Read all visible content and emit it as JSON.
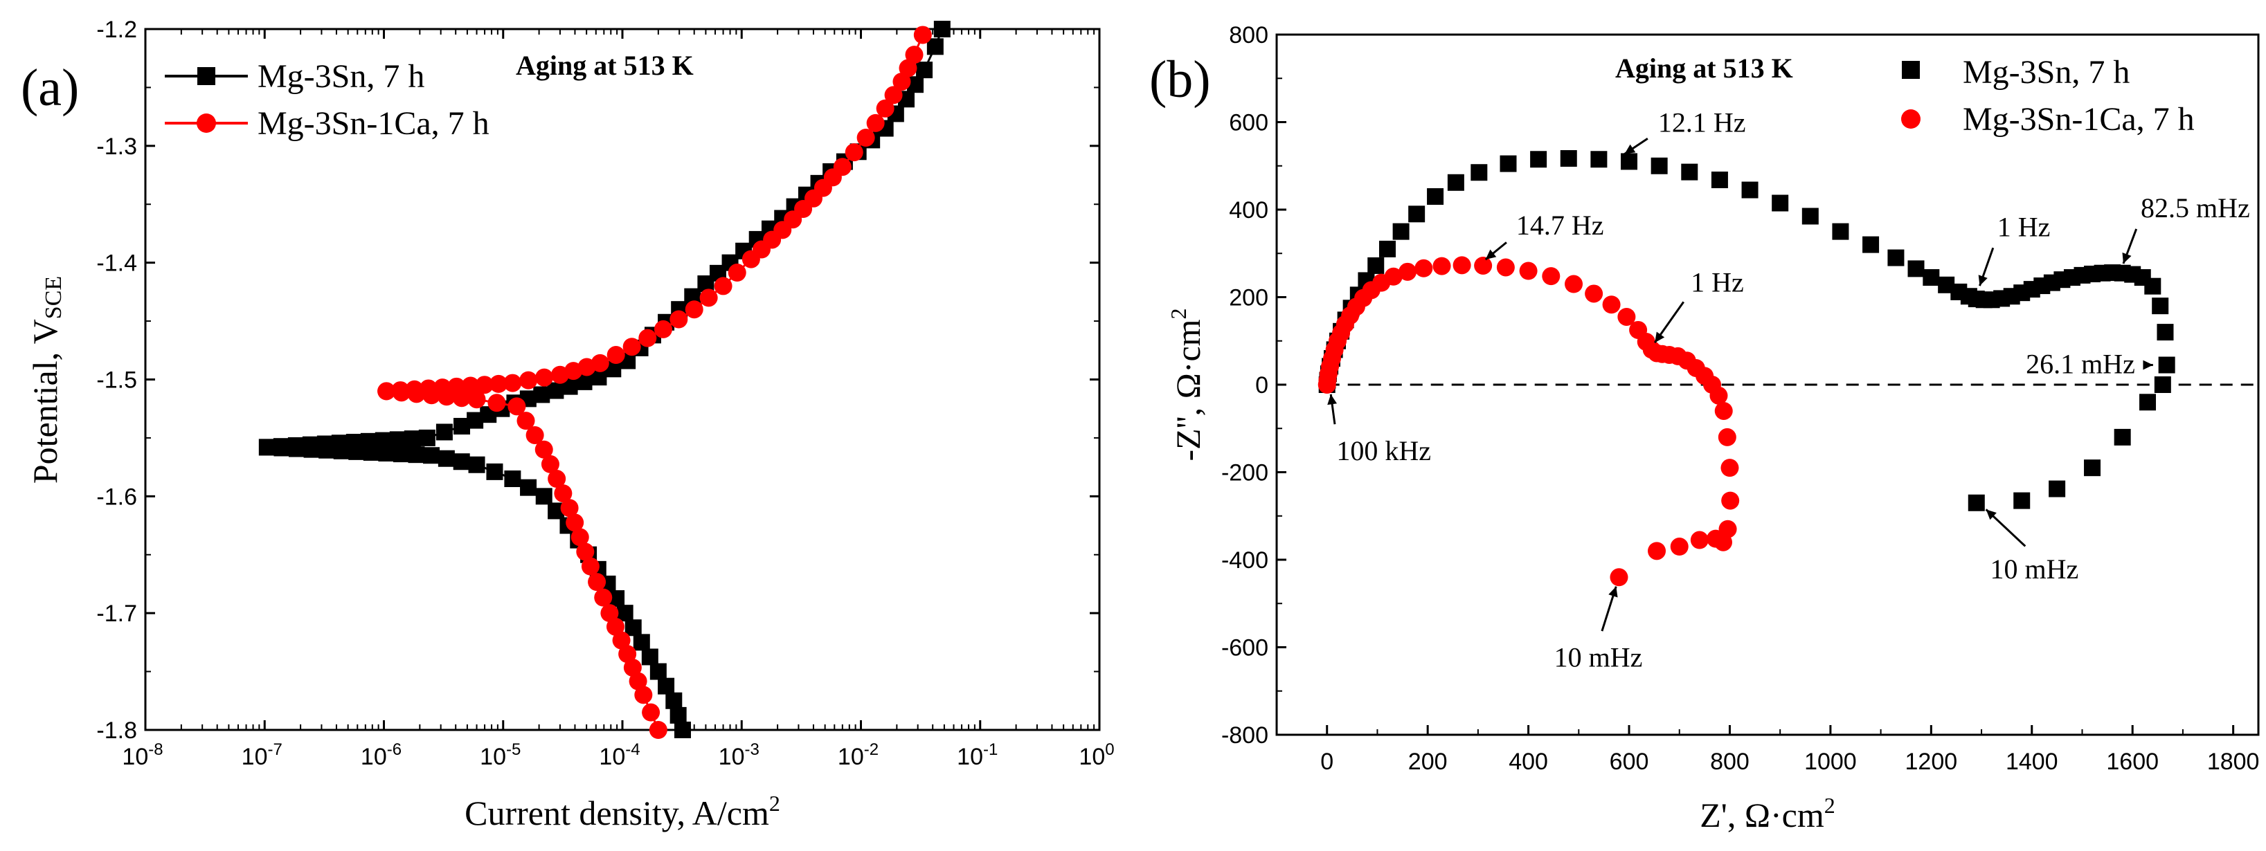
{
  "chart_data": [
    {
      "panel": "(a)",
      "type": "line",
      "annotation": "Aging at 513 K",
      "xlabel": "Current density, A/cm",
      "xlabel_sup": "2",
      "ylabel": "Potential, V",
      "ylabel_sub": "SCE",
      "xscale": "log",
      "xlim": [
        1e-08,
        1
      ],
      "ylim": [
        -1.8,
        -1.2
      ],
      "xticks": [
        {
          "base": "10",
          "exp": "-8"
        },
        {
          "base": "10",
          "exp": "-7"
        },
        {
          "base": "10",
          "exp": "-6"
        },
        {
          "base": "10",
          "exp": "-5"
        },
        {
          "base": "10",
          "exp": "-4"
        },
        {
          "base": "10",
          "exp": "-3"
        },
        {
          "base": "10",
          "exp": "-2"
        },
        {
          "base": "10",
          "exp": "-1"
        },
        {
          "base": "10",
          "exp": "0"
        }
      ],
      "yticks": [
        "-1.2",
        "-1.3",
        "-1.4",
        "-1.5",
        "-1.6",
        "-1.7",
        "-1.8"
      ],
      "legend_position": "top-left",
      "series": [
        {
          "name": "Mg-3Sn, 7 h",
          "color": "#000000",
          "marker": "square",
          "x": [
            1.05e-07,
            2.3e-06,
            4.5e-06,
            7.5e-06,
            1.25e-05,
            2.1e-05,
            3.6e-05,
            6.3e-05,
            0.00011,
            0.00018,
            0.0003,
            0.0005,
            0.0008,
            0.00135,
            0.0022,
            0.0035,
            0.0056,
            0.0095,
            0.016,
            0.024,
            0.034,
            0.042,
            0.048
          ],
          "y": [
            -1.558,
            -1.55,
            -1.54,
            -1.53,
            -1.52,
            -1.513,
            -1.506,
            -1.498,
            -1.484,
            -1.462,
            -1.44,
            -1.418,
            -1.4,
            -1.38,
            -1.362,
            -1.342,
            -1.322,
            -1.305,
            -1.285,
            -1.26,
            -1.235,
            -1.215,
            -1.2
          ],
          "x_cathodic": [
            1.05e-07,
            2.5e-06,
            6e-06,
            1.2e-05,
            2.2e-05,
            3.5e-05,
            5.2e-05,
            7.5e-05,
            0.000105,
            0.000145,
            0.0002,
            0.00027,
            0.00032
          ],
          "y_cathodic": [
            -1.558,
            -1.565,
            -1.573,
            -1.585,
            -1.6,
            -1.625,
            -1.65,
            -1.675,
            -1.7,
            -1.725,
            -1.75,
            -1.775,
            -1.8
          ]
        },
        {
          "name": "Mg-3Sn-1Ca, 7 h",
          "color": "#ff0000",
          "marker": "circle",
          "x": [
            1.05e-06,
            1.2e-05,
            3e-05,
            6.5e-05,
            0.00012,
            0.00022,
            0.0004,
            0.0007,
            0.0012,
            0.0022,
            0.004,
            0.007,
            0.011,
            0.016,
            0.022,
            0.028,
            0.033
          ],
          "y": [
            -1.51,
            -1.503,
            -1.496,
            -1.486,
            -1.472,
            -1.457,
            -1.44,
            -1.42,
            -1.397,
            -1.372,
            -1.345,
            -1.318,
            -1.293,
            -1.268,
            -1.245,
            -1.222,
            -1.205
          ],
          "x_cathodic": [
            1.05e-06,
            6e-06,
            1.3e-05,
            2.2e-05,
            3.6e-05,
            5.4e-05,
            7.8e-05,
            0.00011,
            0.00015,
            0.0002
          ],
          "y_cathodic": [
            -1.51,
            -1.517,
            -1.523,
            -1.56,
            -1.61,
            -1.66,
            -1.7,
            -1.735,
            -1.77,
            -1.8
          ]
        }
      ]
    },
    {
      "panel": "(b)",
      "type": "scatter",
      "annotation": "Aging at 513 K",
      "xlabel": "Z', Ω·cm",
      "xlabel_sup": "2",
      "ylabel": "-Z'', Ω·cm",
      "ylabel_sup": "2",
      "xlim": [
        -100,
        1850
      ],
      "ylim": [
        -800,
        800
      ],
      "xticks": [
        "0",
        "200",
        "400",
        "600",
        "800",
        "1000",
        "1200",
        "1400",
        "1600",
        "1800"
      ],
      "yticks": [
        "800",
        "600",
        "400",
        "200",
        "0",
        "-200",
        "-400",
        "-600",
        "-800"
      ],
      "reference_line_y": 0,
      "legend_position": "top-right",
      "series": [
        {
          "name": "Mg-3Sn, 7 h",
          "color": "#000000",
          "marker": "square",
          "x": [
            0,
            1,
            3,
            6,
            10,
            15,
            21,
            28,
            37,
            48,
            62,
            78,
            97,
            120,
            147,
            178,
            215,
            256,
            302,
            360,
            420,
            480,
            540,
            600,
            660,
            720,
            780,
            840,
            900,
            960,
            1020,
            1080,
            1130,
            1170,
            1200,
            1230,
            1255,
            1275,
            1290,
            1305,
            1320,
            1340,
            1360,
            1380,
            1400,
            1420,
            1440,
            1460,
            1480,
            1500,
            1520,
            1540,
            1560,
            1580,
            1600,
            1620,
            1640,
            1655,
            1665,
            1668,
            1660,
            1630,
            1580,
            1520,
            1450,
            1380,
            1290
          ],
          "y": [
            0,
            10,
            25,
            42,
            60,
            80,
            100,
            122,
            148,
            175,
            205,
            238,
            272,
            310,
            350,
            390,
            430,
            462,
            485,
            505,
            515,
            517,
            515,
            510,
            500,
            486,
            468,
            445,
            415,
            385,
            350,
            320,
            290,
            265,
            245,
            228,
            212,
            202,
            196,
            194,
            194,
            197,
            202,
            210,
            218,
            226,
            233,
            240,
            245,
            250,
            253,
            255,
            256,
            255,
            252,
            245,
            225,
            180,
            120,
            45,
            0,
            -40,
            -120,
            -190,
            -238,
            -265,
            -270
          ]
        },
        {
          "name": "Mg-3Sn-1Ca, 7 h",
          "color": "#ff0000",
          "marker": "circle",
          "x": [
            0,
            1,
            3,
            6,
            10,
            15,
            21,
            28,
            36,
            46,
            58,
            72,
            88,
            108,
            132,
            160,
            192,
            228,
            268,
            310,
            355,
            400,
            445,
            490,
            530,
            565,
            595,
            618,
            634,
            645,
            655,
            666,
            680,
            697,
            715,
            733,
            750,
            765,
            778,
            788,
            795,
            800,
            801,
            796,
            787,
            772,
            740,
            700,
            655,
            580
          ],
          "y": [
            0,
            10,
            25,
            42,
            60,
            80,
            100,
            118,
            138,
            158,
            178,
            198,
            216,
            233,
            247,
            258,
            266,
            271,
            273,
            272,
            268,
            260,
            248,
            230,
            208,
            183,
            155,
            125,
            98,
            80,
            72,
            70,
            68,
            65,
            55,
            38,
            20,
            0,
            -25,
            -60,
            -120,
            -190,
            -265,
            -330,
            -360,
            -352,
            -355,
            -370,
            -380,
            -440
          ]
        }
      ],
      "annotations": [
        {
          "text": "12.1 Hz",
          "point": [
            575,
            515
          ]
        },
        {
          "text": "14.7 Hz",
          "point": [
            300,
            272
          ]
        },
        {
          "text": "1 Hz",
          "point": [
            1290,
            205
          ],
          "series": "Mg-3Sn, 7 h"
        },
        {
          "text": "82.5 mHz",
          "point": [
            1575,
            256
          ]
        },
        {
          "text": "26.1 mHz",
          "point": [
            1660,
            45
          ]
        },
        {
          "text": "1 Hz",
          "point": [
            640,
            78
          ],
          "series": "Mg-3Sn-1Ca, 7 h"
        },
        {
          "text": "100 kHz",
          "point": [
            5,
            0
          ]
        },
        {
          "text": "10 mHz",
          "point": [
            1295,
            -270
          ],
          "series": "Mg-3Sn, 7 h"
        },
        {
          "text": "10 mHz",
          "point": [
            580,
            -440
          ],
          "series": "Mg-3Sn-1Ca, 7 h"
        }
      ]
    }
  ]
}
